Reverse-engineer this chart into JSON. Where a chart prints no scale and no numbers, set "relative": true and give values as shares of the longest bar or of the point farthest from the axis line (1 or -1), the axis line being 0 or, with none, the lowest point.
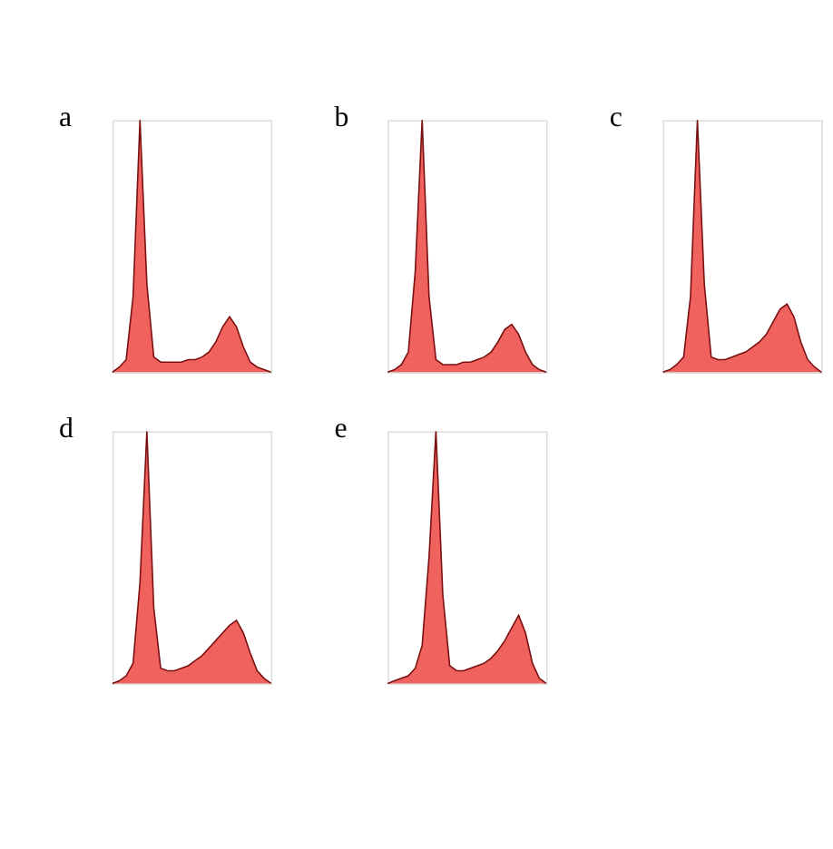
{
  "chart_data": [
    {
      "type": "area",
      "title": "a",
      "relative": true,
      "categories": [
        null,
        null,
        null,
        null,
        null,
        null,
        null,
        null,
        null,
        null,
        null,
        null,
        null,
        null,
        null,
        null,
        null,
        null,
        null,
        null,
        null,
        null,
        null,
        null
      ],
      "series": [
        {
          "color": "#e8201a",
          "values": [
            0,
            0.02,
            0.05,
            0.3,
            1.0,
            0.35,
            0.06,
            0.04,
            0.04,
            0.04,
            0.04,
            0.05,
            0.05,
            0.06,
            0.08,
            0.12,
            0.18,
            0.22,
            0.18,
            0.1,
            0.04,
            0.02,
            0.01,
            0
          ]
        }
      ]
    },
    {
      "type": "area",
      "title": "b",
      "relative": true,
      "categories": [
        null,
        null,
        null,
        null,
        null,
        null,
        null,
        null,
        null,
        null,
        null,
        null,
        null,
        null,
        null,
        null,
        null,
        null,
        null,
        null,
        null,
        null,
        null,
        null
      ],
      "series": [
        {
          "color": "#e8201a",
          "values": [
            0,
            0.01,
            0.03,
            0.08,
            0.4,
            1.0,
            0.3,
            0.05,
            0.03,
            0.03,
            0.03,
            0.04,
            0.04,
            0.05,
            0.06,
            0.08,
            0.12,
            0.17,
            0.19,
            0.15,
            0.08,
            0.03,
            0.01,
            0
          ]
        }
      ]
    },
    {
      "type": "area",
      "title": "c",
      "relative": true,
      "categories": [
        null,
        null,
        null,
        null,
        null,
        null,
        null,
        null,
        null,
        null,
        null,
        null,
        null,
        null,
        null,
        null,
        null,
        null,
        null,
        null,
        null,
        null,
        null,
        null
      ],
      "series": [
        {
          "color": "#e8201a",
          "values": [
            0,
            0.01,
            0.03,
            0.06,
            0.3,
            1.0,
            0.35,
            0.06,
            0.05,
            0.05,
            0.06,
            0.07,
            0.08,
            0.1,
            0.12,
            0.15,
            0.2,
            0.25,
            0.27,
            0.22,
            0.12,
            0.05,
            0.02,
            0
          ]
        }
      ]
    },
    {
      "type": "area",
      "title": "d",
      "relative": true,
      "categories": [
        null,
        null,
        null,
        null,
        null,
        null,
        null,
        null,
        null,
        null,
        null,
        null,
        null,
        null,
        null,
        null,
        null,
        null,
        null,
        null,
        null,
        null,
        null,
        null
      ],
      "series": [
        {
          "color": "#e8201a",
          "values": [
            0,
            0.01,
            0.03,
            0.08,
            0.4,
            1.0,
            0.3,
            0.06,
            0.05,
            0.05,
            0.06,
            0.07,
            0.09,
            0.11,
            0.14,
            0.17,
            0.2,
            0.23,
            0.25,
            0.2,
            0.12,
            0.05,
            0.02,
            0
          ]
        }
      ]
    },
    {
      "type": "area",
      "title": "e",
      "relative": true,
      "categories": [
        null,
        null,
        null,
        null,
        null,
        null,
        null,
        null,
        null,
        null,
        null,
        null,
        null,
        null,
        null,
        null,
        null,
        null,
        null,
        null,
        null,
        null,
        null,
        null
      ],
      "series": [
        {
          "color": "#e8201a",
          "values": [
            0,
            0.01,
            0.02,
            0.03,
            0.06,
            0.15,
            0.5,
            1.0,
            0.35,
            0.07,
            0.05,
            0.05,
            0.06,
            0.07,
            0.08,
            0.1,
            0.13,
            0.17,
            0.22,
            0.27,
            0.2,
            0.08,
            0.02,
            0
          ]
        }
      ]
    }
  ]
}
